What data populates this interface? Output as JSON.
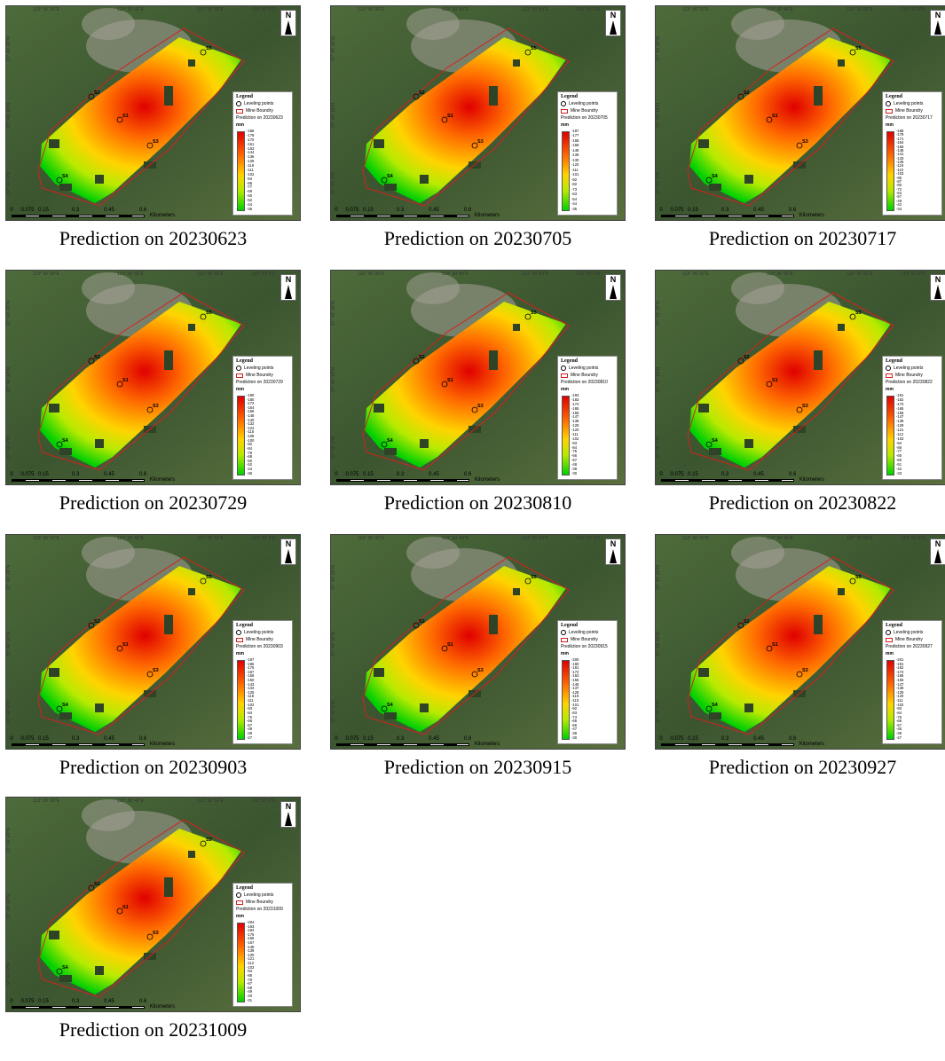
{
  "map_common": {
    "longitude_labels": [
      "113° 30' 30\"E",
      "113° 30' 40\"E",
      "113° 30' 50\"E",
      "113° 31' 0\"E"
    ],
    "latitude_labels": [
      "37° 40' 20\"N",
      "37° 40' 10\"N",
      "37° 40' 0\"N"
    ],
    "north_label": "N",
    "legend_title": "Legend",
    "legend_point_label": "Leveling points",
    "legend_boundary_label": "Mine Boundry",
    "legend_unit": "mm",
    "scale_labels": [
      "0",
      "0.075",
      "0.15",
      "0.3",
      "0.45",
      "0.6"
    ],
    "scale_unit": "Kilometers",
    "point_labels": [
      "S1",
      "S2",
      "S3",
      "S4",
      "S5"
    ],
    "colors": {
      "max": "#e00000",
      "high": "#ff6a00",
      "mid": "#ffd400",
      "low": "#b7ea00",
      "min": "#00d000",
      "boundary": "#d52020"
    }
  },
  "panels": [
    {
      "caption": "Prediction on 20230623",
      "legend_pred": "Prediction on 20230623",
      "ticks": [
        "-186",
        "-178",
        "-170",
        "-161",
        "-153",
        "-144",
        "-136",
        "-128",
        "-119",
        "-111",
        "-102",
        "-94",
        "-86",
        "-77",
        "-69",
        "-60",
        "-52",
        "-44",
        "-35"
      ]
    },
    {
      "caption": "Prediction on 20230705",
      "legend_pred": "Prediction on 20230705",
      "ticks": [
        "-187",
        "-177",
        "-168",
        "-158",
        "-149",
        "-139",
        "-130",
        "-120",
        "-111",
        "-101",
        "-92",
        "-82",
        "-73",
        "-63",
        "-54",
        "-44",
        "-35"
      ]
    },
    {
      "caption": "Prediction on 20230717",
      "legend_pred": "Prediction on 20230717",
      "ticks": [
        "-186",
        "-179",
        "-171",
        "-164",
        "-156",
        "-148",
        "-141",
        "-133",
        "-126",
        "-118",
        "-110",
        "-103",
        "-95",
        "-87",
        "-80",
        "-72",
        "-64",
        "-57",
        "-49",
        "-42",
        "-34"
      ]
    },
    {
      "caption": "Prediction on 20230729",
      "legend_pred": "Prediction on 20230729",
      "ticks": [
        "-190",
        "-180",
        "-172",
        "-164",
        "-156",
        "-148",
        "-140",
        "-132",
        "-124",
        "-116",
        "-108",
        "-100",
        "-92",
        "-84",
        "-76",
        "-68",
        "-60",
        "-52",
        "-44",
        "-36"
      ]
    },
    {
      "caption": "Prediction on 20230810",
      "legend_pred": "Prediction on 20230810",
      "ticks": [
        "-193",
        "-183",
        "-174",
        "-165",
        "-156",
        "-147",
        "-138",
        "-129",
        "-120",
        "-111",
        "-102",
        "-93",
        "-84",
        "-75",
        "-66",
        "-57",
        "-48",
        "-39",
        "-30"
      ]
    },
    {
      "caption": "Prediction on 20230822",
      "legend_pred": "Prediction on 20230822",
      "ticks": [
        "-191",
        "-182",
        "-173",
        "-165",
        "-156",
        "-147",
        "-138",
        "-129",
        "-121",
        "-112",
        "-103",
        "-94",
        "-86",
        "-77",
        "-68",
        "-60",
        "-51",
        "-42",
        "-33"
      ]
    },
    {
      "caption": "Prediction on 20230903",
      "legend_pred": "Prediction on 20230903",
      "ticks": [
        "-197",
        "-185",
        "-176",
        "-167",
        "-158",
        "-150",
        "-143",
        "-134",
        "-125",
        "-118",
        "-111",
        "-102",
        "-93",
        "-84",
        "-75",
        "-66",
        "-57",
        "-48",
        "-39",
        "-27"
      ]
    },
    {
      "caption": "Prediction on 20230915",
      "legend_pred": "Prediction on 20230915",
      "ticks": [
        "-200",
        "-190",
        "-181",
        "-172",
        "-163",
        "-155",
        "-146",
        "-137",
        "-128",
        "-119",
        "-110",
        "-101",
        "-92",
        "-83",
        "-74",
        "-65",
        "-56",
        "-47",
        "-38",
        "-30"
      ]
    },
    {
      "caption": "Prediction on 20230927",
      "legend_pred": "Prediction on 20230927",
      "ticks": [
        "-201",
        "-191",
        "-182",
        "-174",
        "-165",
        "-156",
        "-147",
        "-138",
        "-129",
        "-120",
        "-111",
        "-102",
        "-93",
        "-84",
        "-75",
        "-66",
        "-57",
        "-48",
        "-39",
        "-27"
      ]
    },
    {
      "caption": "Prediction on 20231009",
      "legend_pred": "Prediction on 20231009",
      "ticks": [
        "-204",
        "-193",
        "-184",
        "-175",
        "-166",
        "-157",
        "-148",
        "-139",
        "-130",
        "-121",
        "-112",
        "-103",
        "-94",
        "-85",
        "-76",
        "-67",
        "-58",
        "-49",
        "-40",
        "-31"
      ]
    }
  ]
}
